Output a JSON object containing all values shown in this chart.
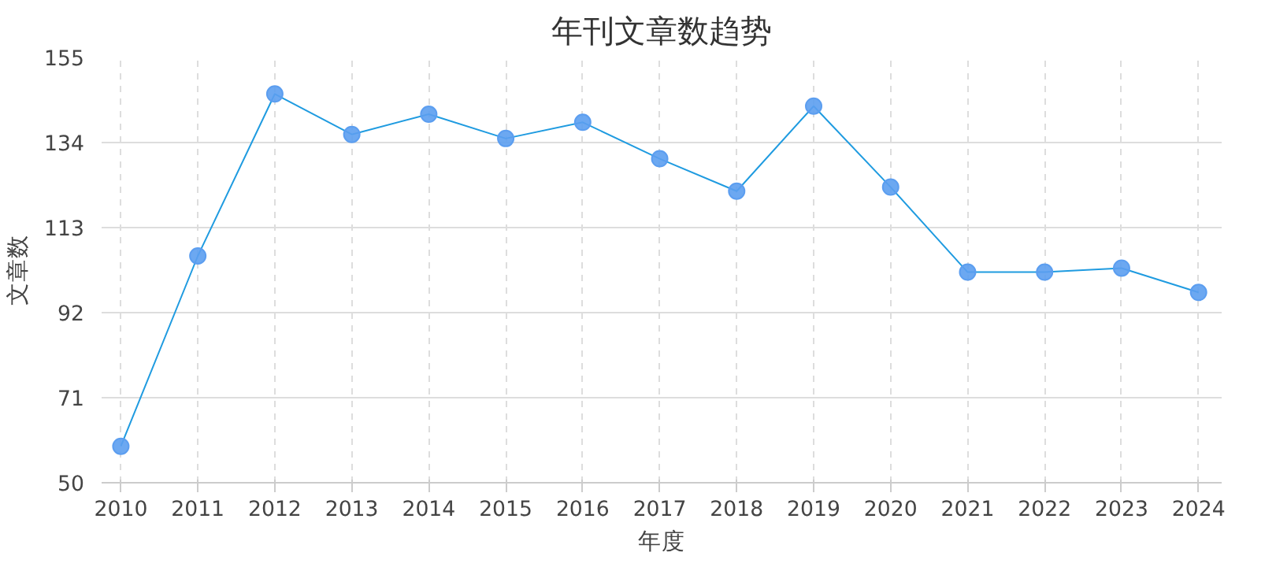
{
  "chart_data": {
    "type": "line",
    "title": "年刊文章数趋势",
    "xlabel": "年度",
    "ylabel": "文章数",
    "categories": [
      "2010",
      "2011",
      "2012",
      "2013",
      "2014",
      "2015",
      "2016",
      "2017",
      "2018",
      "2019",
      "2020",
      "2021",
      "2022",
      "2023",
      "2024"
    ],
    "series": [
      {
        "color": "#1f9be0",
        "values": [
          59,
          106,
          146,
          136,
          141,
          135,
          139,
          130,
          122,
          143,
          123,
          102,
          102,
          103,
          97
        ]
      }
    ],
    "ylim": [
      50,
      155
    ],
    "yticks": [
      50,
      71,
      92,
      113,
      134,
      155
    ],
    "grid": true,
    "marker": "circle",
    "line_style": "solid"
  }
}
